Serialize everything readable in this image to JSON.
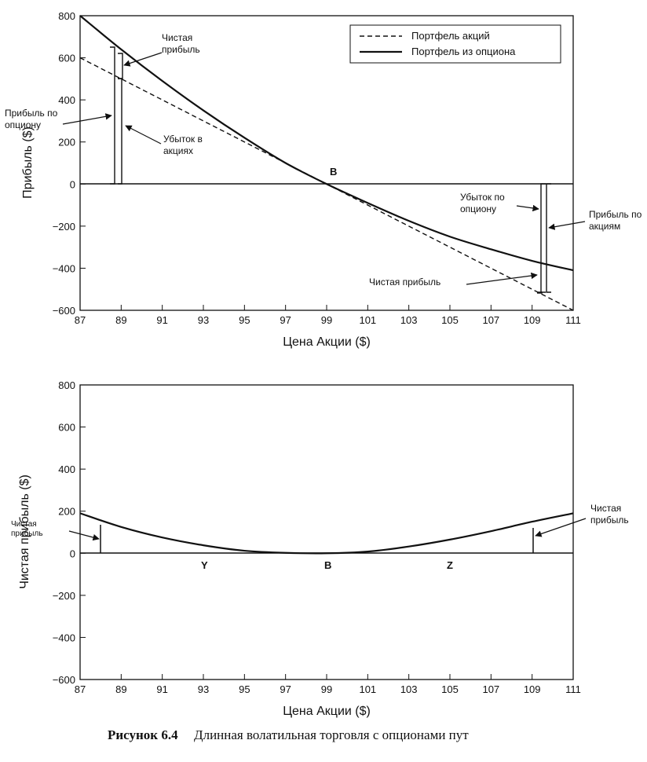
{
  "caption": {
    "number": "Рисунок 6.4",
    "text": "Длинная волатильная торговля с опционами пут"
  },
  "chart_data": [
    {
      "type": "line",
      "title": "",
      "xlabel": "Цена Акции ($)",
      "ylabel": "Прибыль ($)",
      "xlim": [
        87,
        111
      ],
      "ylim": [
        -600,
        800
      ],
      "xticks": [
        "87",
        "89",
        "91",
        "93",
        "95",
        "97",
        "99",
        "101",
        "103",
        "105",
        "107",
        "109",
        "111"
      ],
      "yticks": [
        "800",
        "600",
        "400",
        "200",
        "0",
        "-200",
        "-400",
        "-600"
      ],
      "legend": {
        "position": "top-right"
      },
      "series": [
        {
          "name": "Портфель акций",
          "style": "dashed",
          "x": [
            87,
            111
          ],
          "y": [
            600,
            -600
          ]
        },
        {
          "name": "Портфель из опциона",
          "style": "solid",
          "x": [
            87,
            89,
            91,
            93,
            95,
            97,
            99,
            101,
            103,
            105,
            107,
            109,
            111
          ],
          "y": [
            800,
            640,
            490,
            350,
            220,
            100,
            0,
            -90,
            -175,
            -250,
            -310,
            -365,
            -410
          ]
        }
      ],
      "annotations": {
        "net_profit_left": "Чистая прибыль",
        "option_profit": "Прибыль по опциону",
        "stock_loss": "Убыток в акциях",
        "point_b": "B",
        "option_loss": "Убыток по опциону",
        "stock_profit": "Прибыль по акциям",
        "net_profit_right": "Чистая прибыль"
      }
    },
    {
      "type": "line",
      "title": "",
      "xlabel": "Цена Акции ($)",
      "ylabel": "Чистая прибыль ($)",
      "xlim": [
        87,
        111
      ],
      "ylim": [
        -600,
        800
      ],
      "xticks": [
        "87",
        "89",
        "91",
        "93",
        "95",
        "97",
        "99",
        "101",
        "103",
        "105",
        "107",
        "109",
        "111"
      ],
      "yticks": [
        "800",
        "600",
        "400",
        "200",
        "0",
        "-200",
        "-400",
        "-600"
      ],
      "series": [
        {
          "x": [
            87,
            89,
            91,
            93,
            95,
            97,
            99,
            101,
            103,
            105,
            107,
            109,
            111
          ],
          "y": [
            190,
            125,
            75,
            38,
            12,
            2,
            0,
            8,
            32,
            65,
            105,
            150,
            190
          ]
        }
      ],
      "annotations": {
        "net_profit_left": "Чистая прибыль",
        "net_profit_right": "Чистая прибыль",
        "point_y": "Y",
        "point_b": "B",
        "point_z": "Z"
      }
    }
  ]
}
